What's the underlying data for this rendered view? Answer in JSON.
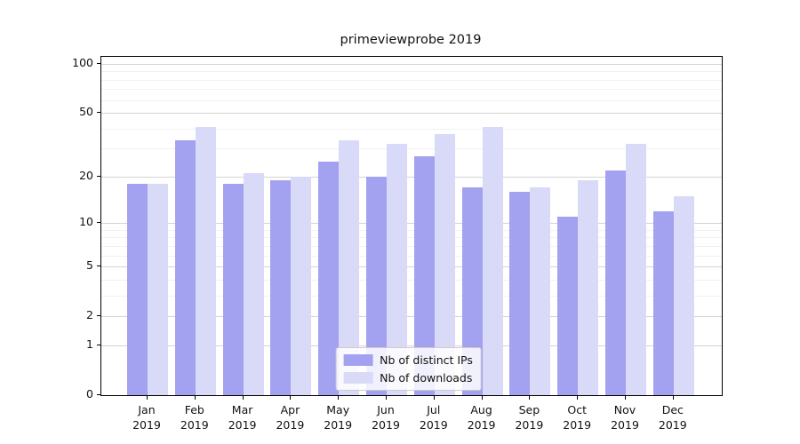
{
  "chart_data": {
    "type": "bar",
    "title": "primeviewprobe 2019",
    "categories": [
      "Jan 2019",
      "Feb 2019",
      "Mar 2019",
      "Apr 2019",
      "May 2019",
      "Jun 2019",
      "Jul 2019",
      "Aug 2019",
      "Sep 2019",
      "Oct 2019",
      "Nov 2019",
      "Dec 2019"
    ],
    "series": [
      {
        "name": "Nb of distinct IPs",
        "color": "#a2a2f0",
        "values": [
          18,
          34,
          18,
          19,
          25,
          20,
          27,
          17,
          16,
          11,
          22,
          12
        ]
      },
      {
        "name": "Nb of downloads",
        "color": "#d9d9f8",
        "values": [
          18,
          41,
          21,
          20,
          34,
          32,
          37,
          41,
          17,
          19,
          32,
          15
        ]
      }
    ],
    "xlabel": "",
    "ylabel": "",
    "yscale": "log1p",
    "ylim": [
      0,
      110.4
    ],
    "y_major_ticks": [
      0,
      1,
      2,
      5,
      10,
      20,
      50,
      100
    ],
    "y_minor_ticks": [
      3,
      4,
      6,
      7,
      8,
      9,
      30,
      40,
      60,
      70,
      80,
      90
    ],
    "grid": true,
    "legend_position": "lower center"
  }
}
